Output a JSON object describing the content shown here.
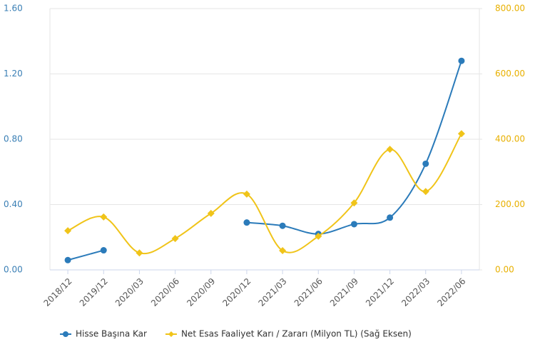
{
  "chart_data": {
    "type": "line",
    "categories": [
      "2018/12",
      "2019/12",
      "2020/03",
      "2020/06",
      "2020/09",
      "2020/12",
      "2021/03",
      "2021/06",
      "2021/09",
      "2021/12",
      "2022/03",
      "2022/06"
    ],
    "series": [
      {
        "name": "Hisse Başına Kar",
        "color": "#2b7bba",
        "axis": "y",
        "values": [
          0.06,
          0.12,
          null,
          null,
          null,
          0.29,
          0.27,
          0.22,
          0.28,
          0.32,
          0.65,
          1.28
        ]
      },
      {
        "name": "Net Esas Faaliyet Karı / Zararı (Milyon TL) (Sağ Eksen)",
        "color": "#f0c419",
        "axis": "y2",
        "values": [
          120,
          162,
          52,
          96,
          173,
          232,
          59,
          103,
          205,
          369,
          240,
          417
        ]
      }
    ],
    "ylim": [
      0,
      1.6
    ],
    "yticks": [
      {
        "value": 0,
        "label": "0.00"
      },
      {
        "value": 0.4,
        "label": "0.40"
      },
      {
        "value": 0.8,
        "label": "0.80"
      },
      {
        "value": 1.2,
        "label": "1.20"
      },
      {
        "value": 1.6,
        "label": "1.60"
      }
    ],
    "y2lim": [
      0,
      800
    ],
    "y2ticks": [
      {
        "value": 0,
        "label": "0.00"
      },
      {
        "value": 200,
        "label": "200.00"
      },
      {
        "value": 400,
        "label": "400.00"
      },
      {
        "value": 600,
        "label": "600.00"
      },
      {
        "value": 800,
        "label": "800.00"
      }
    ],
    "grid": true,
    "legend": "bottom"
  }
}
